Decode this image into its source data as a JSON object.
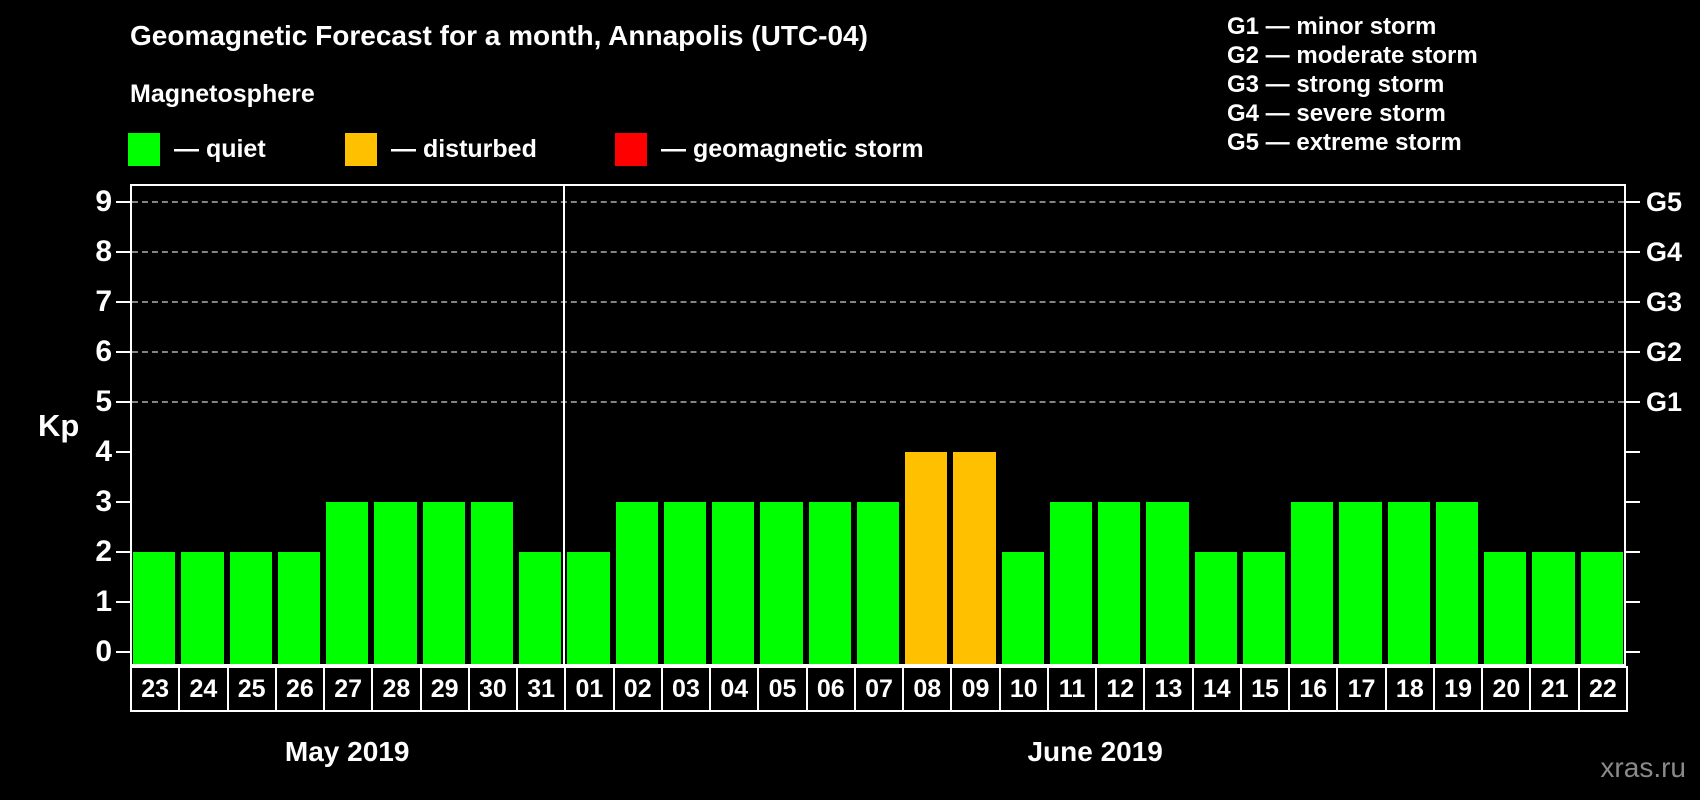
{
  "header": {
    "title": "Geomagnetic Forecast for a month, Annapolis (UTC-04)"
  },
  "magnetosphere_legend": {
    "title": "Magnetosphere",
    "items": [
      {
        "key": "quiet",
        "label": "— quiet",
        "color": "#00ff00"
      },
      {
        "key": "disturbed",
        "label": "— disturbed",
        "color": "#ffc000"
      },
      {
        "key": "storm",
        "label": "— geomagnetic storm",
        "color": "#ff0000"
      }
    ]
  },
  "g_legend": {
    "items": [
      "G1 — minor storm",
      "G2 — moderate storm",
      "G3 — strong storm",
      "G4 — severe storm",
      "G5 — extreme storm"
    ]
  },
  "watermark": "xras.ru",
  "chart_data": {
    "type": "bar",
    "title": "Geomagnetic Forecast for a month, Annapolis (UTC-04)",
    "ylabel": "Kp",
    "ylim": [
      0,
      9
    ],
    "yticks": [
      0,
      1,
      2,
      3,
      4,
      5,
      6,
      7,
      8,
      9
    ],
    "grid_levels": [
      5,
      6,
      7,
      8,
      9
    ],
    "grid_style": "dashed",
    "legend_position": "top",
    "right_axis_labels": [
      {
        "label": "G1",
        "kp": 5
      },
      {
        "label": "G2",
        "kp": 6
      },
      {
        "label": "G3",
        "kp": 7
      },
      {
        "label": "G4",
        "kp": 8
      },
      {
        "label": "G5",
        "kp": 9
      }
    ],
    "status_colors": {
      "quiet": "#00ff00",
      "disturbed": "#ffc000",
      "storm": "#ff0000"
    },
    "months": [
      {
        "label": "May 2019",
        "days": [
          "23",
          "24",
          "25",
          "26",
          "27",
          "28",
          "29",
          "30",
          "31"
        ],
        "kp": [
          2,
          2,
          2,
          2,
          3,
          3,
          3,
          3,
          2
        ],
        "status": [
          "quiet",
          "quiet",
          "quiet",
          "quiet",
          "quiet",
          "quiet",
          "quiet",
          "quiet",
          "quiet"
        ]
      },
      {
        "label": "June 2019",
        "days": [
          "01",
          "02",
          "03",
          "04",
          "05",
          "06",
          "07",
          "08",
          "09",
          "10",
          "11",
          "12",
          "13",
          "14",
          "15",
          "16",
          "17",
          "18",
          "19",
          "20",
          "21",
          "22"
        ],
        "kp": [
          2,
          3,
          3,
          3,
          3,
          3,
          3,
          4,
          4,
          2,
          3,
          3,
          3,
          2,
          2,
          3,
          3,
          3,
          3,
          2,
          2,
          2
        ],
        "status": [
          "quiet",
          "quiet",
          "quiet",
          "quiet",
          "quiet",
          "quiet",
          "quiet",
          "disturbed",
          "disturbed",
          "quiet",
          "quiet",
          "quiet",
          "quiet",
          "quiet",
          "quiet",
          "quiet",
          "quiet",
          "quiet",
          "quiet",
          "quiet",
          "quiet",
          "quiet"
        ]
      }
    ]
  }
}
